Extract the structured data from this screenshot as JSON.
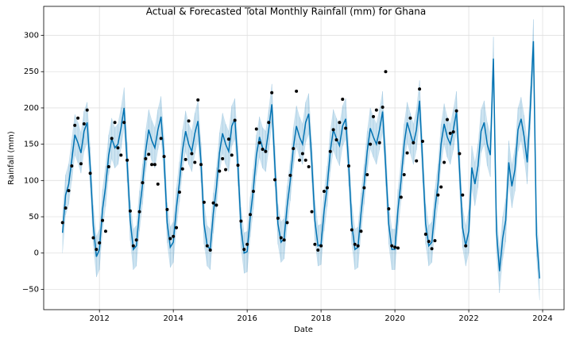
{
  "chart_data": {
    "type": "line",
    "title": "Actual & Forecasted Total Monthly Rainfall (mm) for Ghana",
    "x_label": "Date",
    "y_label": "Rainfall (mm)",
    "xlim": [
      2010.49,
      2024.58
    ],
    "ylim": [
      -78,
      340
    ],
    "xticks": [
      2012,
      2014,
      2016,
      2018,
      2020,
      2022,
      2024
    ],
    "yticks": [
      {
        "value": -50,
        "label": "−50"
      },
      0,
      50,
      100,
      150,
      200,
      250,
      300
    ],
    "grid": true,
    "x": [
      2011,
      2011.083,
      2011.167,
      2011.25,
      2011.333,
      2011.417,
      2011.5,
      2011.583,
      2011.667,
      2011.75,
      2011.833,
      2011.917,
      2012,
      2012.083,
      2012.167,
      2012.25,
      2012.333,
      2012.417,
      2012.5,
      2012.583,
      2012.667,
      2012.75,
      2012.833,
      2012.917,
      2013,
      2013.083,
      2013.167,
      2013.25,
      2013.333,
      2013.417,
      2013.5,
      2013.583,
      2013.667,
      2013.75,
      2013.833,
      2013.917,
      2014,
      2014.083,
      2014.167,
      2014.25,
      2014.333,
      2014.417,
      2014.5,
      2014.583,
      2014.667,
      2014.75,
      2014.833,
      2014.917,
      2015,
      2015.083,
      2015.167,
      2015.25,
      2015.333,
      2015.417,
      2015.5,
      2015.583,
      2015.667,
      2015.75,
      2015.833,
      2015.917,
      2016,
      2016.083,
      2016.167,
      2016.25,
      2016.333,
      2016.417,
      2016.5,
      2016.583,
      2016.667,
      2016.75,
      2016.833,
      2016.917,
      2017,
      2017.083,
      2017.167,
      2017.25,
      2017.333,
      2017.417,
      2017.5,
      2017.583,
      2017.667,
      2017.75,
      2017.833,
      2017.917,
      2018,
      2018.083,
      2018.167,
      2018.25,
      2018.333,
      2018.417,
      2018.5,
      2018.583,
      2018.667,
      2018.75,
      2018.833,
      2018.917,
      2019,
      2019.083,
      2019.167,
      2019.25,
      2019.333,
      2019.417,
      2019.5,
      2019.583,
      2019.667,
      2019.75,
      2019.833,
      2019.917,
      2020,
      2020.083,
      2020.167,
      2020.25,
      2020.333,
      2020.417,
      2020.5,
      2020.583,
      2020.667,
      2020.75,
      2020.833,
      2020.917,
      2021,
      2021.083,
      2021.167,
      2021.25,
      2021.333,
      2021.417,
      2021.5,
      2021.583,
      2021.667,
      2021.75,
      2021.833,
      2021.917,
      2022,
      2022.083,
      2022.167,
      2022.25,
      2022.333,
      2022.417,
      2022.5,
      2022.583,
      2022.667,
      2022.75,
      2022.833,
      2022.917,
      2023,
      2023.083,
      2023.167,
      2023.25,
      2023.333,
      2023.417,
      2023.5,
      2023.583,
      2023.667,
      2023.75,
      2023.833,
      2023.917
    ],
    "forecast": {
      "color": "#0072B2",
      "values": [
        28,
        80,
        95,
        128,
        163,
        152,
        138,
        168,
        180,
        118,
        38,
        -5,
        5,
        60,
        92,
        135,
        158,
        145,
        150,
        172,
        200,
        125,
        45,
        5,
        10,
        58,
        95,
        140,
        170,
        155,
        145,
        170,
        188,
        130,
        42,
        8,
        15,
        62,
        98,
        142,
        168,
        150,
        140,
        165,
        182,
        125,
        40,
        10,
        5,
        55,
        90,
        138,
        165,
        150,
        140,
        175,
        185,
        120,
        35,
        0,
        2,
        50,
        88,
        135,
        160,
        145,
        140,
        170,
        205,
        120,
        40,
        15,
        20,
        65,
        100,
        145,
        175,
        160,
        150,
        180,
        192,
        125,
        45,
        10,
        12,
        58,
        92,
        140,
        170,
        158,
        148,
        175,
        185,
        120,
        40,
        5,
        8,
        55,
        95,
        140,
        172,
        160,
        150,
        170,
        195,
        120,
        40,
        5,
        5,
        60,
        100,
        150,
        180,
        165,
        150,
        170,
        210,
        125,
        40,
        10,
        15,
        60,
        95,
        150,
        178,
        160,
        150,
        170,
        195,
        115,
        35,
        10,
        30,
        118,
        95,
        120,
        168,
        180,
        150,
        135,
        268,
        30,
        -25,
        20,
        45,
        125,
        92,
        115,
        170,
        185,
        160,
        125,
        200,
        292,
        25,
        -35
      ]
    },
    "interval": {
      "color": "#0072B2",
      "alpha": 0.2,
      "lower": [
        0,
        52,
        67,
        100,
        135,
        124,
        110,
        140,
        152,
        90,
        10,
        -33,
        -23,
        32,
        64,
        107,
        130,
        117,
        122,
        144,
        172,
        97,
        17,
        -23,
        -18,
        30,
        67,
        112,
        142,
        127,
        117,
        142,
        160,
        102,
        14,
        -20,
        -13,
        34,
        70,
        114,
        140,
        122,
        112,
        137,
        154,
        97,
        12,
        -18,
        -23,
        27,
        62,
        110,
        137,
        122,
        112,
        147,
        157,
        92,
        7,
        -28,
        -26,
        22,
        60,
        107,
        132,
        117,
        112,
        142,
        177,
        92,
        12,
        -13,
        -8,
        37,
        72,
        117,
        147,
        132,
        122,
        152,
        164,
        97,
        17,
        -18,
        -16,
        30,
        64,
        112,
        142,
        130,
        120,
        147,
        157,
        92,
        12,
        -23,
        -20,
        27,
        67,
        112,
        144,
        132,
        122,
        142,
        167,
        92,
        12,
        -23,
        -23,
        32,
        72,
        122,
        152,
        137,
        122,
        142,
        182,
        97,
        12,
        -18,
        -13,
        32,
        67,
        122,
        150,
        132,
        122,
        142,
        167,
        87,
        7,
        -18,
        0,
        88,
        65,
        90,
        138,
        150,
        120,
        105,
        238,
        0,
        -55,
        -10,
        15,
        95,
        62,
        85,
        140,
        155,
        130,
        95,
        170,
        262,
        -5,
        -65
      ],
      "upper": [
        56,
        108,
        123,
        156,
        191,
        180,
        166,
        196,
        208,
        146,
        66,
        23,
        33,
        88,
        120,
        163,
        186,
        173,
        178,
        200,
        228,
        153,
        73,
        33,
        38,
        86,
        123,
        168,
        198,
        183,
        173,
        198,
        216,
        158,
        70,
        36,
        43,
        90,
        126,
        170,
        196,
        178,
        168,
        193,
        210,
        153,
        68,
        38,
        33,
        83,
        118,
        166,
        193,
        178,
        168,
        203,
        213,
        148,
        63,
        28,
        30,
        78,
        116,
        163,
        188,
        173,
        168,
        198,
        233,
        148,
        68,
        43,
        48,
        93,
        128,
        173,
        203,
        188,
        178,
        208,
        220,
        153,
        73,
        38,
        40,
        86,
        120,
        168,
        198,
        186,
        176,
        203,
        213,
        148,
        68,
        33,
        36,
        83,
        123,
        168,
        200,
        188,
        178,
        198,
        223,
        148,
        68,
        33,
        33,
        88,
        128,
        178,
        208,
        193,
        178,
        198,
        238,
        153,
        68,
        38,
        43,
        88,
        123,
        178,
        206,
        188,
        178,
        198,
        223,
        143,
        63,
        38,
        60,
        148,
        125,
        150,
        198,
        210,
        180,
        165,
        298,
        60,
        5,
        50,
        75,
        155,
        122,
        145,
        200,
        215,
        190,
        155,
        230,
        322,
        55,
        -5
      ]
    },
    "actual": {
      "color": "#000000",
      "values": [
        42,
        62,
        86,
        120,
        176,
        186,
        123,
        178,
        197,
        110,
        21,
        5,
        14,
        45,
        30,
        119,
        158,
        180,
        145,
        135,
        180,
        128,
        58,
        10,
        18,
        57,
        97,
        130,
        136,
        122,
        122,
        95,
        158,
        133,
        60,
        20,
        23,
        35,
        84,
        116,
        129,
        182,
        137,
        125,
        211,
        122,
        70,
        10,
        4,
        69,
        66,
        113,
        130,
        115,
        157,
        135,
        183,
        121,
        44,
        5,
        12,
        53,
        85,
        171,
        152,
        143,
        140,
        180,
        221,
        101,
        48,
        21,
        18,
        42,
        107,
        144,
        223,
        128,
        137,
        128,
        119,
        57,
        12,
        4,
        10,
        85,
        90,
        140,
        170,
        156,
        180,
        212,
        172,
        120,
        32,
        12,
        10,
        30,
        90,
        108,
        150,
        188,
        197,
        152,
        201,
        250,
        61,
        10,
        8,
        7,
        77,
        108,
        138,
        186,
        152,
        127,
        226,
        154,
        26,
        16,
        6,
        17,
        80,
        91,
        125,
        184,
        165,
        167,
        196,
        137,
        80,
        10
      ]
    }
  }
}
